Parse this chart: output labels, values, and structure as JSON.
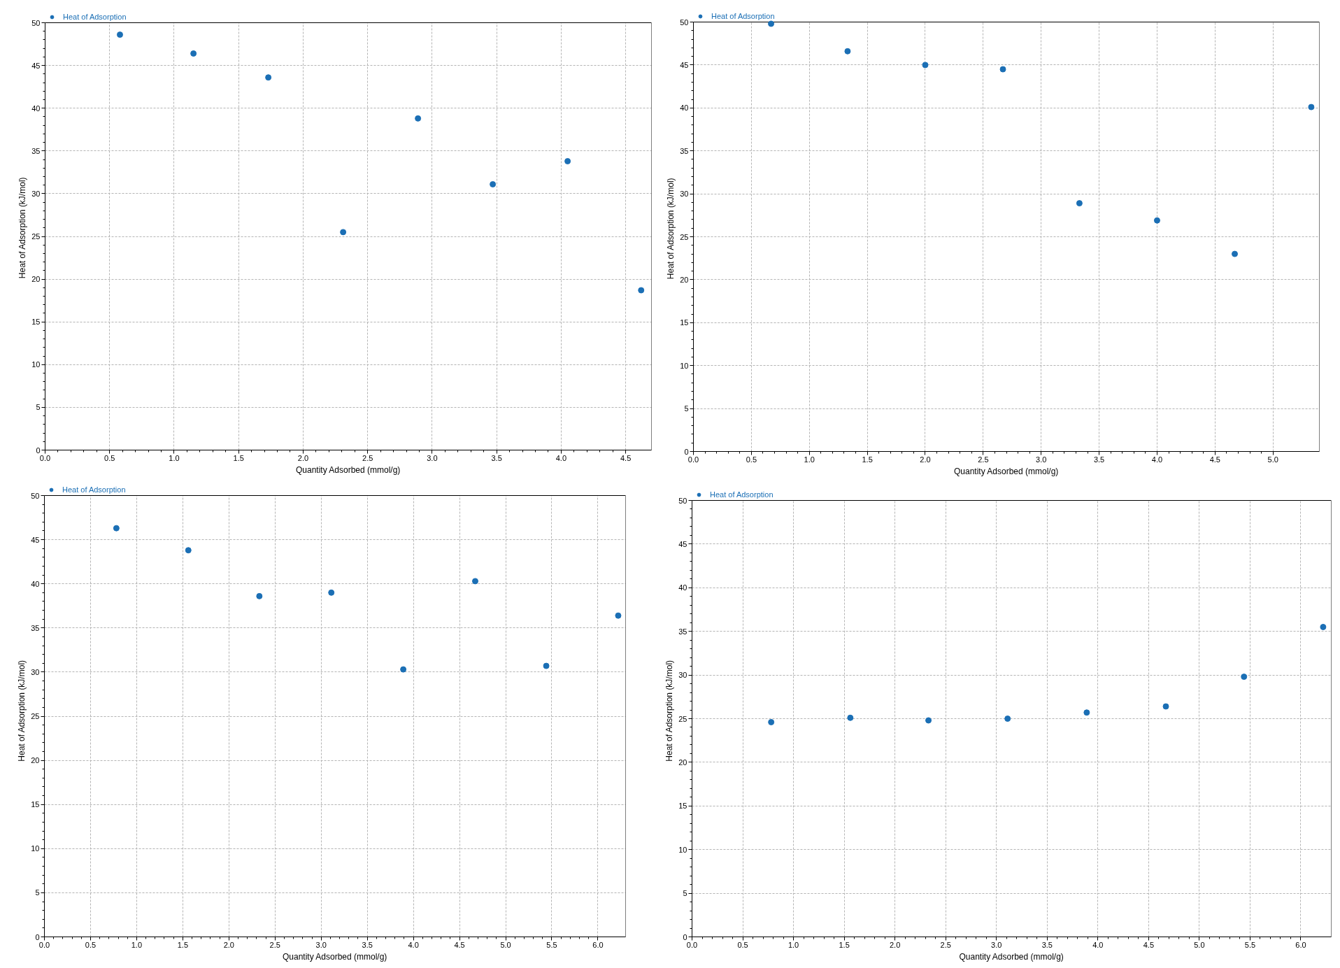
{
  "chart_data": [
    {
      "type": "scatter",
      "xlabel": "Quantity Adsorbed (mmol/g)",
      "ylabel": "Heat of Adsorption (kJ/mol)",
      "xlim": [
        0,
        4.7
      ],
      "ylim": [
        0,
        50
      ],
      "xticks": [
        {
          "value": 0,
          "label": "0.0"
        },
        0.5,
        {
          "value": 1,
          "label": "1.0"
        },
        1.5,
        {
          "value": 2,
          "label": "2.0"
        },
        2.5,
        {
          "value": 3,
          "label": "3.0"
        },
        3.5,
        {
          "value": 4,
          "label": "4.0"
        },
        4.5
      ],
      "yticks": [
        0,
        5,
        10,
        15,
        20,
        25,
        30,
        35,
        40,
        45,
        50
      ],
      "grid": true,
      "legend": "top left",
      "marker": "circle",
      "series": [
        {
          "name": "Heat of Adsorption",
          "color": "#1b6fb5",
          "x": [
            0.58,
            1.15,
            1.73,
            2.31,
            2.89,
            3.47,
            4.05,
            4.62
          ],
          "values": [
            48.6,
            46.4,
            43.6,
            25.5,
            38.8,
            31.1,
            33.8,
            18.7
          ]
        }
      ]
    },
    {
      "type": "scatter",
      "xlabel": "Quantity Adsorbed (mmol/g)",
      "ylabel": "Heat of Adsorption (kJ/mol)",
      "xlim": [
        0,
        5.4
      ],
      "ylim": [
        0,
        50
      ],
      "xticks": [
        {
          "value": 0,
          "label": "0.0"
        },
        0.5,
        {
          "value": 1,
          "label": "1.0"
        },
        1.5,
        {
          "value": 2,
          "label": "2.0"
        },
        2.5,
        {
          "value": 3,
          "label": "3.0"
        },
        3.5,
        {
          "value": 4,
          "label": "4.0"
        },
        4.5,
        {
          "value": 5,
          "label": "5.0"
        }
      ],
      "yticks": [
        0,
        5,
        10,
        15,
        20,
        25,
        30,
        35,
        40,
        45,
        50
      ],
      "grid": true,
      "legend": "top left",
      "marker": "circle",
      "series": [
        {
          "name": "Heat of Adsorption",
          "color": "#1b6fb5",
          "x": [
            0.67,
            1.33,
            2.0,
            2.67,
            3.33,
            4.0,
            4.67,
            5.33
          ],
          "values": [
            49.8,
            46.6,
            45.0,
            44.5,
            28.9,
            26.9,
            23.0,
            40.1
          ]
        }
      ]
    },
    {
      "type": "scatter",
      "xlabel": "Quantity Adsorbed (mmol/g)",
      "ylabel": "Heat of Adsorption (kJ/mol)",
      "xlim": [
        0,
        6.3
      ],
      "ylim": [
        0,
        50
      ],
      "xticks": [
        {
          "value": 0,
          "label": "0.0"
        },
        0.5,
        {
          "value": 1,
          "label": "1.0"
        },
        1.5,
        {
          "value": 2,
          "label": "2.0"
        },
        2.5,
        {
          "value": 3,
          "label": "3.0"
        },
        3.5,
        {
          "value": 4,
          "label": "4.0"
        },
        4.5,
        {
          "value": 5,
          "label": "5.0"
        },
        5.5,
        {
          "value": 6,
          "label": "6.0"
        }
      ],
      "yticks": [
        0,
        5,
        10,
        15,
        20,
        25,
        30,
        35,
        40,
        45,
        50
      ],
      "grid": true,
      "legend": "top left",
      "marker": "circle",
      "series": [
        {
          "name": "Heat of Adsorption",
          "color": "#1b6fb5",
          "x": [
            0.78,
            1.56,
            2.33,
            3.11,
            3.89,
            4.67,
            5.44,
            6.22
          ],
          "values": [
            46.3,
            43.8,
            38.6,
            39.0,
            30.3,
            40.3,
            30.7,
            36.4
          ]
        }
      ]
    },
    {
      "type": "scatter",
      "xlabel": "Quantity Adsorbed (mmol/g)",
      "ylabel": "Heat of Adsorption (kJ/mol)",
      "xlim": [
        0,
        6.3
      ],
      "ylim": [
        0,
        50
      ],
      "xticks": [
        {
          "value": 0,
          "label": "0.0"
        },
        0.5,
        {
          "value": 1,
          "label": "1.0"
        },
        1.5,
        {
          "value": 2,
          "label": "2.0"
        },
        2.5,
        {
          "value": 3,
          "label": "3.0"
        },
        3.5,
        {
          "value": 4,
          "label": "4.0"
        },
        4.5,
        {
          "value": 5,
          "label": "5.0"
        },
        5.5,
        {
          "value": 6,
          "label": "6.0"
        }
      ],
      "yticks": [
        0,
        5,
        10,
        15,
        20,
        25,
        30,
        35,
        40,
        45,
        50
      ],
      "grid": true,
      "legend": "top left",
      "marker": "circle",
      "series": [
        {
          "name": "Heat of Adsorption",
          "color": "#1b6fb5",
          "x": [
            0.78,
            1.56,
            2.33,
            3.11,
            3.89,
            4.67,
            5.44,
            6.22
          ],
          "values": [
            24.6,
            25.1,
            24.8,
            25.0,
            25.7,
            26.4,
            29.8,
            35.5
          ]
        }
      ]
    }
  ]
}
